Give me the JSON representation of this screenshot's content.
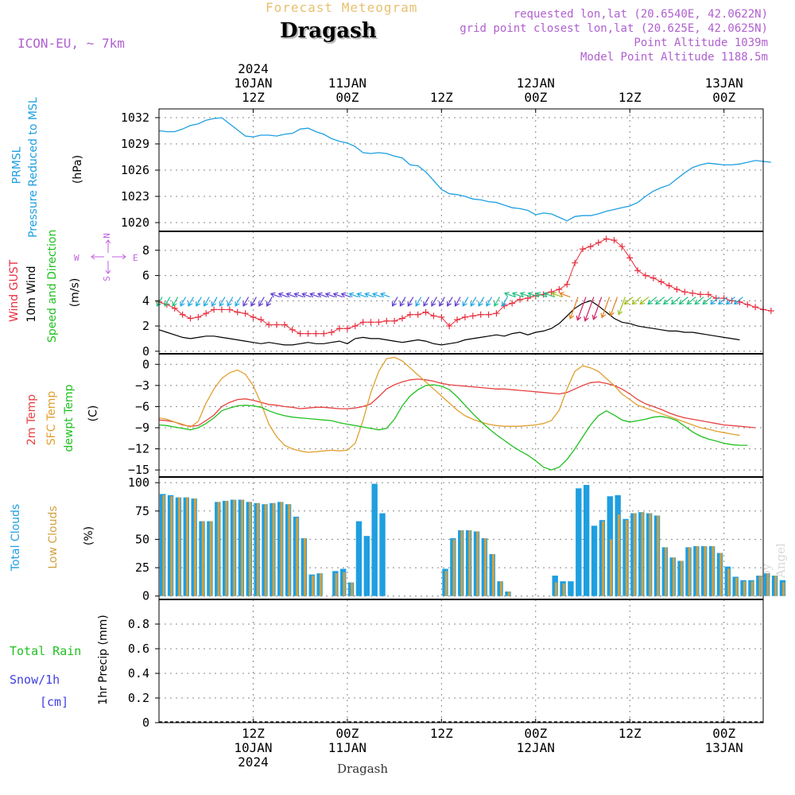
{
  "header": {
    "title": "Forecast Meteogram",
    "place": "Dragash",
    "model": "ICON-EU, ~ 7km",
    "requested": "requested lon,lat (20.6540E, 42.0622N)",
    "gridpoint": "grid point closest lon,lat (20.625E, 42.0625N)",
    "point_alt": "Point Altitude 1039m",
    "model_alt": "Model Point Altitude 1188.5m",
    "footer": "Dragash",
    "watermark": "by Angel"
  },
  "time_axis": {
    "top_labels": [
      {
        "t": 12,
        "lines": [
          "2024",
          "10JAN",
          "12Z"
        ]
      },
      {
        "t": 24,
        "lines": [
          "11JAN",
          "00Z"
        ]
      },
      {
        "t": 36,
        "lines": [
          "12Z"
        ]
      },
      {
        "t": 48,
        "lines": [
          "12JAN",
          "00Z"
        ]
      },
      {
        "t": 60,
        "lines": [
          "12Z"
        ]
      },
      {
        "t": 72,
        "lines": [
          "13JAN",
          "00Z"
        ]
      }
    ],
    "bottom_labels": [
      {
        "t": 12,
        "lines": [
          "12Z",
          "10JAN",
          "2024"
        ]
      },
      {
        "t": 24,
        "lines": [
          "00Z",
          "11JAN"
        ]
      },
      {
        "t": 36,
        "lines": [
          "12Z"
        ]
      },
      {
        "t": 48,
        "lines": [
          "00Z",
          "12JAN"
        ]
      },
      {
        "t": 60,
        "lines": [
          "12Z"
        ]
      },
      {
        "t": 72,
        "lines": [
          "00Z",
          "13JAN"
        ]
      }
    ],
    "grid_hours": [
      12,
      24,
      36,
      48,
      60,
      72
    ],
    "range_hours": [
      0,
      77
    ],
    "start_note": "hour 0 = 10JAN 00Z, hourly steps"
  },
  "panel_labels": {
    "pressure": [
      "PRMSL",
      "Pressure Reduced to MSL",
      "(hPa)"
    ],
    "wind": [
      "Wind GUST",
      "10m Wind",
      "Speed and Direction",
      "(m/s)"
    ],
    "compass": {
      "n": "N",
      "s": "S",
      "w": "W",
      "e": "E"
    },
    "temp": [
      "2m Temp",
      "SFC Temp",
      "dewpt Temp",
      "(C)"
    ],
    "clouds": [
      "Total Clouds",
      "Low Clouds",
      "(%)"
    ],
    "precip_left": [
      "Total  Rain",
      "Snow/1h",
      "[cm]"
    ],
    "precip_axis": "1hr Precip (mm)"
  },
  "colors": {
    "pressure": "#1e9fe0",
    "gust": "#e83040",
    "wind": "#000000",
    "t2m": "#e84040",
    "tsfc": "#e0a030",
    "dewpt": "#20c020",
    "total_clouds": "#1e9fe0",
    "low_clouds": "#d0a040",
    "rain": "#20c020",
    "snow": "#4040e0",
    "compass": "#c060e0"
  },
  "chart_data": [
    {
      "type": "line",
      "name": "pressure",
      "ylim": [
        1019,
        1033
      ],
      "yticks": [
        1020,
        1023,
        1026,
        1029,
        1032
      ],
      "series": [
        {
          "name": "PRMSL",
          "values": [
            1030.5,
            1030.4,
            1030.4,
            1030.7,
            1031.1,
            1031.3,
            1031.7,
            1031.9,
            1032.0,
            1031.3,
            1030.6,
            1029.9,
            1029.8,
            1030.0,
            1030.0,
            1029.9,
            1030.1,
            1030.2,
            1030.7,
            1030.8,
            1030.4,
            1030.1,
            1029.6,
            1029.3,
            1029.1,
            1028.7,
            1028.0,
            1027.9,
            1028.0,
            1027.9,
            1027.6,
            1027.4,
            1026.6,
            1026.5,
            1025.8,
            1024.8,
            1023.8,
            1023.3,
            1023.2,
            1023.0,
            1022.7,
            1022.6,
            1022.4,
            1022.3,
            1022.0,
            1021.7,
            1021.6,
            1021.4,
            1020.9,
            1021.1,
            1021.0,
            1020.6,
            1020.2,
            1020.7,
            1020.8,
            1020.8,
            1021.0,
            1021.3,
            1021.5,
            1021.7,
            1021.9,
            1022.3,
            1023.0,
            1023.6,
            1024.0,
            1024.3,
            1025.0,
            1025.7,
            1026.3,
            1026.6,
            1026.8,
            1026.7,
            1026.6,
            1026.6,
            1026.7,
            1026.9,
            1027.1,
            1027.0,
            1026.9
          ]
        }
      ]
    },
    {
      "type": "line",
      "name": "wind",
      "ylim": [
        -0.2,
        9.5
      ],
      "yticks": [
        0,
        2,
        4,
        6,
        8
      ],
      "series": [
        {
          "name": "Wind GUST",
          "values": [
            3.9,
            3.7,
            3.4,
            2.9,
            2.6,
            2.7,
            3.0,
            3.3,
            3.3,
            3.3,
            3.1,
            3.0,
            2.7,
            2.5,
            2.1,
            2.1,
            2.1,
            1.7,
            1.4,
            1.4,
            1.4,
            1.4,
            1.5,
            1.8,
            1.8,
            2.0,
            2.3,
            2.3,
            2.3,
            2.4,
            2.4,
            2.6,
            2.9,
            2.9,
            3.1,
            2.8,
            2.7,
            2.0,
            2.5,
            2.7,
            2.8,
            2.9,
            2.9,
            3.0,
            3.6,
            3.8,
            4.1,
            4.2,
            4.4,
            4.5,
            4.7,
            4.9,
            5.3,
            7.0,
            8.1,
            8.3,
            8.6,
            8.9,
            8.8,
            8.3,
            7.4,
            6.4,
            6.0,
            5.8,
            5.5,
            5.2,
            4.9,
            4.7,
            4.6,
            4.5,
            4.5,
            4.2,
            4.2,
            4.0,
            3.9,
            3.7,
            3.5,
            3.3,
            3.2
          ]
        },
        {
          "name": "10m Wind",
          "values": [
            1.7,
            1.5,
            1.3,
            1.1,
            1.0,
            1.1,
            1.2,
            1.2,
            1.1,
            1.0,
            0.9,
            0.8,
            0.7,
            0.6,
            0.7,
            0.6,
            0.5,
            0.5,
            0.6,
            0.7,
            0.6,
            0.6,
            0.7,
            0.8,
            0.6,
            1.0,
            1.1,
            1.0,
            1.0,
            0.9,
            0.8,
            0.7,
            0.8,
            0.9,
            0.8,
            0.6,
            0.5,
            0.6,
            0.7,
            0.9,
            1.0,
            1.1,
            1.2,
            1.3,
            1.2,
            1.4,
            1.5,
            1.3,
            1.5,
            1.6,
            1.8,
            2.2,
            2.8,
            3.4,
            3.8,
            4.0,
            3.6,
            3.1,
            2.6,
            2.3,
            2.2,
            2.0,
            1.9,
            1.8,
            1.7,
            1.6,
            1.6,
            1.5,
            1.5,
            1.4,
            1.3,
            1.2,
            1.1,
            1.0,
            0.9
          ]
        }
      ]
    },
    {
      "type": "line",
      "name": "temperature",
      "ylim": [
        -16,
        1.5
      ],
      "yticks": [
        0,
        -3,
        -6,
        -9,
        -12,
        -15
      ],
      "series": [
        {
          "name": "2m Temp",
          "values": [
            -7.9,
            -8.0,
            -8.2,
            -8.6,
            -8.8,
            -8.7,
            -8.0,
            -7.2,
            -6.0,
            -5.4,
            -5.0,
            -4.9,
            -5.1,
            -5.4,
            -5.7,
            -5.8,
            -6.0,
            -6.1,
            -6.3,
            -6.2,
            -6.1,
            -6.1,
            -6.2,
            -6.3,
            -6.3,
            -6.2,
            -6.0,
            -5.6,
            -4.6,
            -3.5,
            -2.9,
            -2.5,
            -2.2,
            -2.1,
            -2.2,
            -2.4,
            -2.7,
            -2.9,
            -3.0,
            -3.1,
            -3.2,
            -3.3,
            -3.4,
            -3.5,
            -3.5,
            -3.6,
            -3.7,
            -3.8,
            -3.9,
            -4.0,
            -4.1,
            -4.2,
            -4.0,
            -3.5,
            -3.0,
            -2.6,
            -2.5,
            -2.7,
            -3.0,
            -3.5,
            -4.2,
            -5.0,
            -5.6,
            -6.0,
            -6.4,
            -6.9,
            -7.3,
            -7.6,
            -7.8,
            -8.0,
            -8.2,
            -8.4,
            -8.6,
            -8.7,
            -8.8,
            -8.9,
            -9.0
          ]
        },
        {
          "name": "SFC Temp",
          "values": [
            -7.6,
            -7.8,
            -8.2,
            -8.5,
            -8.9,
            -8.1,
            -5.5,
            -3.5,
            -2.0,
            -1.2,
            -0.8,
            -1.4,
            -3.0,
            -5.5,
            -8.5,
            -10.3,
            -11.5,
            -12.0,
            -12.3,
            -12.5,
            -12.4,
            -12.3,
            -12.2,
            -12.3,
            -12.2,
            -11.2,
            -8.0,
            -4.0,
            -1.0,
            0.8,
            1.0,
            0.5,
            -0.5,
            -1.5,
            -2.5,
            -3.5,
            -4.5,
            -5.5,
            -6.5,
            -7.3,
            -7.8,
            -8.2,
            -8.5,
            -8.7,
            -8.8,
            -8.8,
            -8.8,
            -8.7,
            -8.6,
            -8.4,
            -8.0,
            -6.5,
            -3.5,
            -1.0,
            -0.2,
            -0.5,
            -1.0,
            -2.0,
            -3.0,
            -4.2,
            -5.0,
            -5.8,
            -6.2,
            -6.6,
            -7.0,
            -7.4,
            -7.8,
            -8.2,
            -8.6,
            -9.0,
            -9.2,
            -9.5,
            -9.7,
            -9.9,
            -10.1
          ]
        },
        {
          "name": "dewpt Temp",
          "values": [
            -8.6,
            -8.7,
            -8.9,
            -9.1,
            -9.3,
            -9.0,
            -8.4,
            -7.6,
            -6.6,
            -6.2,
            -5.9,
            -5.8,
            -5.9,
            -6.1,
            -6.6,
            -7.0,
            -7.3,
            -7.5,
            -7.6,
            -7.7,
            -7.8,
            -7.9,
            -8.0,
            -8.3,
            -8.5,
            -8.7,
            -8.9,
            -9.1,
            -9.3,
            -9.1,
            -7.8,
            -5.9,
            -4.5,
            -3.6,
            -3.0,
            -2.9,
            -3.1,
            -3.6,
            -4.6,
            -5.8,
            -7.0,
            -8.1,
            -9.1,
            -10.0,
            -10.8,
            -11.6,
            -12.3,
            -12.9,
            -13.7,
            -14.6,
            -15.0,
            -14.6,
            -13.5,
            -12.0,
            -10.3,
            -8.6,
            -7.3,
            -6.6,
            -7.2,
            -7.9,
            -8.2,
            -8.0,
            -7.8,
            -7.5,
            -7.4,
            -7.6,
            -8.0,
            -8.8,
            -9.6,
            -10.2,
            -10.6,
            -10.9,
            -11.2,
            -11.4,
            -11.5,
            -11.5
          ]
        }
      ]
    },
    {
      "type": "bar",
      "name": "clouds",
      "ylim": [
        -3,
        105
      ],
      "yticks": [
        0,
        25,
        50,
        75,
        100
      ],
      "series": [
        {
          "name": "Total Clouds",
          "values": [
            90,
            89,
            87,
            87,
            86,
            66,
            66,
            83,
            84,
            85,
            85,
            83,
            82,
            81,
            82,
            83,
            81,
            70,
            51,
            19,
            20,
            0,
            22,
            24,
            12,
            66,
            53,
            99,
            73,
            0,
            0,
            0,
            0,
            0,
            0,
            0,
            24,
            51,
            58,
            58,
            57,
            51,
            37,
            13,
            4,
            0,
            0,
            0,
            0,
            0,
            18,
            13,
            13,
            95,
            98,
            62,
            67,
            88,
            89,
            68,
            73,
            74,
            73,
            71,
            43,
            34,
            31,
            43,
            44,
            44,
            44,
            38,
            26,
            17,
            14,
            14,
            18,
            20,
            18,
            14
          ]
        },
        {
          "name": "Low Clouds",
          "values": [
            89,
            88,
            87,
            87,
            86,
            66,
            66,
            83,
            84,
            85,
            85,
            83,
            82,
            81,
            82,
            83,
            81,
            69,
            51,
            18,
            20,
            0,
            20,
            21,
            12,
            0,
            0,
            0,
            0,
            0,
            0,
            0,
            0,
            0,
            0,
            0,
            22,
            50,
            58,
            58,
            57,
            51,
            37,
            13,
            4,
            0,
            0,
            0,
            0,
            0,
            12,
            11,
            0,
            0,
            0,
            0,
            66,
            50,
            72,
            67,
            73,
            74,
            73,
            71,
            43,
            34,
            31,
            43,
            44,
            44,
            44,
            38,
            24,
            16,
            13,
            13,
            18,
            20,
            18,
            12
          ]
        }
      ]
    },
    {
      "type": "bar",
      "name": "precipitation",
      "ylim": [
        0,
        1.0
      ],
      "yticks": [
        0,
        0.2,
        0.4,
        0.6,
        0.8
      ],
      "series": [
        {
          "name": "Total Rain",
          "values": []
        },
        {
          "name": "Snow/1h",
          "values": []
        }
      ]
    }
  ]
}
